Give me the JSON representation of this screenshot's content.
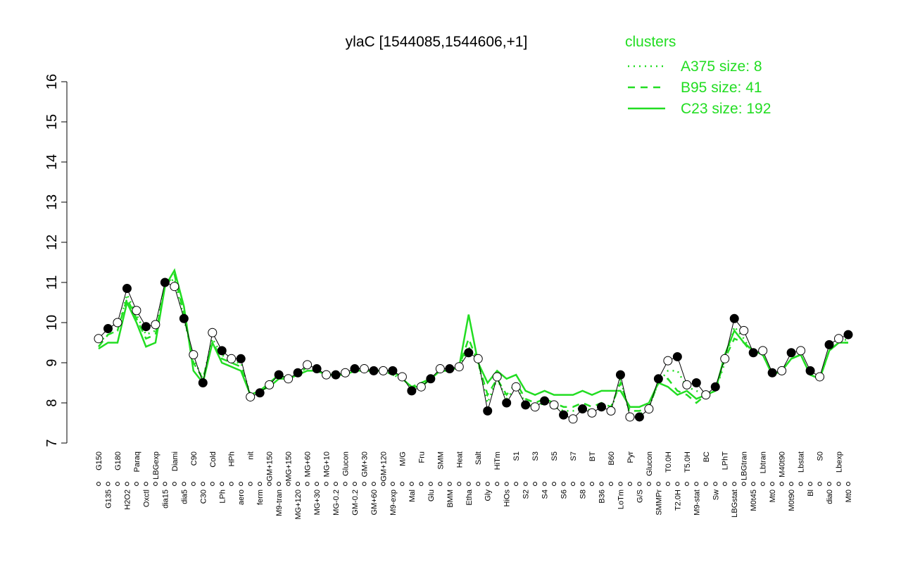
{
  "chart_data": {
    "type": "line",
    "title": "ylaC [1544085,1544606,+1]",
    "legend_title": "clusters",
    "legend_position": "top-right",
    "categories": [
      "G150",
      "G135",
      "G180",
      "H2O2",
      "Paraq",
      "Oxctl",
      "LBGexp",
      "dia15",
      "Diami",
      "dia5",
      "C90",
      "C30",
      "Cold",
      "LPh",
      "HPh",
      "aero",
      "nit",
      "ferm",
      "GM+150",
      "M9-tran",
      "MG+150",
      "MG+120",
      "MG+60",
      "MG+30",
      "MG+10",
      "MG-0.2",
      "Glucon",
      "GM-0.2",
      "GM+30",
      "GM+60",
      "GM+120",
      "M9-exp",
      "M/G",
      "Mal",
      "Fru",
      "Glu",
      "SMM",
      "BMM",
      "Heat",
      "Etha",
      "Salt",
      "Gly",
      "HiTm",
      "HiOs",
      "S1",
      "S2",
      "S3",
      "S4",
      "S5",
      "S6",
      "S7",
      "S8",
      "BT",
      "B36",
      "B60",
      "LoTm",
      "Pyr",
      "G/S",
      "Glucon",
      "SMMPr",
      "T0.0H",
      "T2.0H",
      "T5.0H",
      "M9-stat",
      "BC",
      "Sw",
      "LPhT",
      "LBGstat",
      "LBGtran",
      "M0t45",
      "Lbtran",
      "Mt0",
      "M40t90",
      "M0t90",
      "Lbstat",
      "Bl",
      "S0",
      "dia0",
      "Lbexp",
      "Mt0"
    ],
    "values": [
      9.6,
      9.85,
      10.0,
      10.85,
      10.3,
      9.9,
      9.95,
      11.0,
      10.9,
      10.1,
      9.2,
      8.5,
      9.75,
      9.3,
      9.1,
      9.1,
      8.15,
      8.25,
      8.45,
      8.7,
      8.6,
      8.75,
      8.95,
      8.85,
      8.7,
      8.7,
      8.75,
      8.85,
      8.85,
      8.8,
      8.8,
      8.8,
      8.65,
      8.3,
      8.4,
      8.6,
      8.85,
      8.85,
      8.9,
      9.25,
      9.1,
      7.8,
      8.65,
      8.0,
      8.4,
      7.95,
      7.9,
      8.05,
      7.95,
      7.7,
      7.6,
      7.85,
      7.75,
      7.9,
      7.8,
      8.7,
      7.65,
      7.65,
      7.85,
      8.6,
      9.05,
      9.15,
      8.45,
      8.5,
      8.2,
      8.4,
      9.1,
      10.1,
      9.8,
      9.25,
      9.3,
      8.75,
      8.8,
      9.25,
      9.3,
      8.8,
      8.65,
      9.45,
      9.6,
      9.7
    ],
    "series": [
      {
        "name": "A375 size: 8",
        "color": "#22dd22",
        "style": "dotted",
        "values": [
          9.5,
          9.7,
          9.8,
          10.7,
          10.2,
          9.7,
          9.8,
          10.9,
          11.1,
          10.1,
          9.1,
          8.6,
          9.6,
          9.2,
          9.0,
          9.0,
          8.2,
          8.3,
          8.5,
          8.7,
          8.6,
          8.7,
          8.9,
          8.8,
          8.7,
          8.7,
          8.7,
          8.8,
          8.8,
          8.8,
          8.8,
          8.7,
          8.6,
          8.4,
          8.5,
          8.6,
          8.8,
          8.8,
          8.9,
          9.4,
          9.0,
          8.0,
          8.6,
          8.1,
          8.4,
          8.0,
          7.9,
          8.0,
          7.9,
          7.8,
          7.8,
          7.9,
          7.8,
          7.9,
          7.8,
          8.6,
          7.7,
          7.7,
          7.9,
          8.5,
          8.8,
          8.8,
          8.4,
          8.3,
          8.2,
          8.3,
          9.0,
          9.9,
          9.6,
          9.2,
          9.2,
          8.7,
          8.8,
          9.1,
          9.2,
          8.7,
          8.6,
          9.3,
          9.5,
          9.6
        ]
      },
      {
        "name": "B95 size: 41",
        "color": "#22dd22",
        "style": "dashed",
        "values": [
          9.4,
          9.7,
          9.8,
          10.6,
          10.1,
          9.6,
          9.7,
          10.9,
          11.2,
          10.2,
          9.0,
          8.6,
          9.5,
          9.1,
          9.0,
          8.9,
          8.2,
          8.3,
          8.5,
          8.7,
          8.6,
          8.7,
          8.9,
          8.8,
          8.7,
          8.7,
          8.7,
          8.8,
          8.8,
          8.8,
          8.8,
          8.7,
          8.6,
          8.4,
          8.5,
          8.6,
          8.8,
          8.8,
          8.9,
          9.6,
          9.0,
          8.2,
          8.6,
          8.2,
          8.5,
          8.1,
          8.0,
          8.1,
          8.0,
          7.9,
          7.9,
          8.0,
          7.9,
          8.0,
          7.9,
          8.5,
          7.8,
          7.8,
          7.9,
          8.5,
          8.6,
          8.3,
          8.2,
          8.0,
          8.2,
          8.3,
          9.1,
          9.6,
          9.5,
          9.2,
          9.2,
          8.7,
          8.8,
          9.1,
          9.2,
          8.7,
          8.6,
          9.3,
          9.5,
          9.5
        ]
      },
      {
        "name": "C23 size: 192",
        "color": "#22dd22",
        "style": "solid",
        "values": [
          9.35,
          9.5,
          9.5,
          10.5,
          10.0,
          9.4,
          9.5,
          10.9,
          11.3,
          10.4,
          8.8,
          8.5,
          9.5,
          9.0,
          8.9,
          8.8,
          8.2,
          8.3,
          8.4,
          8.6,
          8.6,
          8.7,
          8.8,
          8.8,
          8.7,
          8.7,
          8.7,
          8.8,
          8.8,
          8.8,
          8.8,
          8.8,
          8.6,
          8.4,
          8.4,
          8.6,
          8.8,
          8.8,
          8.9,
          10.2,
          9.0,
          8.5,
          8.8,
          8.6,
          8.7,
          8.3,
          8.2,
          8.3,
          8.2,
          8.2,
          8.2,
          8.3,
          8.2,
          8.3,
          8.3,
          8.3,
          7.9,
          7.9,
          8.0,
          8.5,
          8.4,
          8.2,
          8.3,
          8.1,
          8.2,
          8.3,
          9.2,
          9.8,
          9.5,
          9.3,
          9.2,
          8.7,
          8.8,
          9.1,
          9.2,
          8.7,
          8.6,
          9.3,
          9.5,
          9.5
        ]
      }
    ],
    "ylim": [
      7,
      16
    ],
    "yticks": [
      7,
      8,
      9,
      10,
      11,
      12,
      13,
      14,
      15,
      16
    ]
  }
}
